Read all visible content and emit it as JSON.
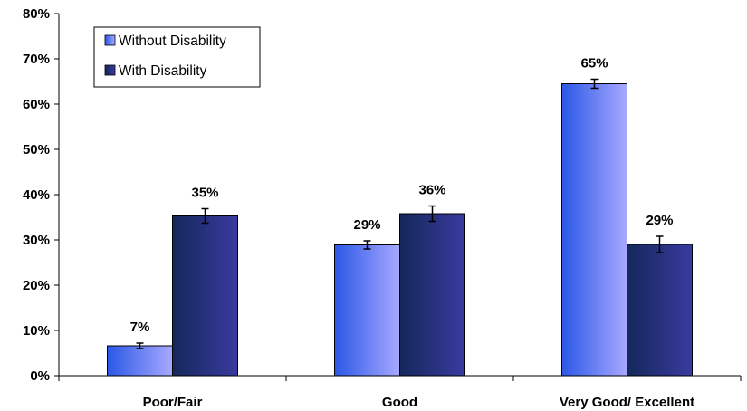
{
  "chart_data": {
    "type": "bar",
    "title": "",
    "xlabel": "",
    "ylabel": "",
    "ylim": [
      0,
      80
    ],
    "y_ticks": [
      "0%",
      "10%",
      "20%",
      "30%",
      "40%",
      "50%",
      "60%",
      "70%",
      "80%"
    ],
    "y_tick_values": [
      0,
      10,
      20,
      30,
      40,
      50,
      60,
      70,
      80
    ],
    "categories": [
      "Poor/Fair",
      "Good",
      "Very Good/ Excellent"
    ],
    "grid": false,
    "legend_position": "top-left",
    "series": [
      {
        "name": "Without Disability",
        "values": [
          6.6,
          28.9,
          64.5
        ],
        "labels": [
          "7%",
          "29%",
          "65%"
        ],
        "error": [
          0.6,
          0.9,
          1.0
        ],
        "color_dark": "#2a58e6",
        "color_light": "#a8a8ff"
      },
      {
        "name": "With Disability",
        "values": [
          35.3,
          35.8,
          29.0
        ],
        "labels": [
          "35%",
          "36%",
          "29%"
        ],
        "error": [
          1.6,
          1.7,
          1.8
        ],
        "color_dark": "#14285a",
        "color_light": "#3a3aa0"
      }
    ]
  }
}
